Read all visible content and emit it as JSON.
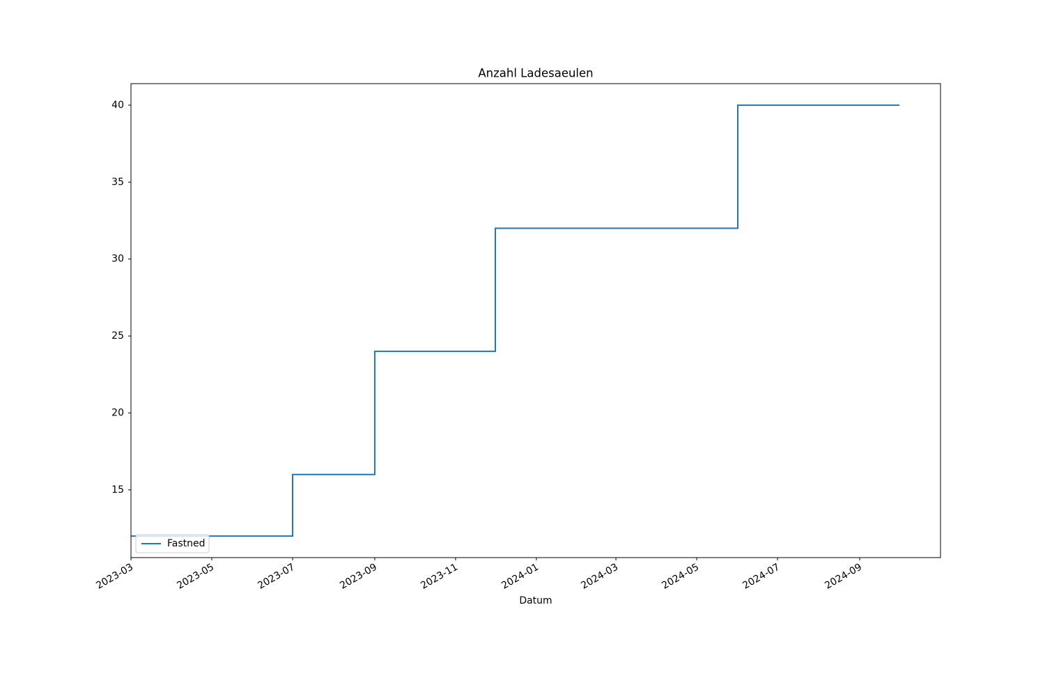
{
  "chart_data": {
    "type": "line",
    "title": "Anzahl Ladesaeulen",
    "xlabel": "Datum",
    "x": [
      "2023-03",
      "2023-07",
      "2023-07",
      "2023-09",
      "2023-09",
      "2023-12",
      "2023-12",
      "2024-06",
      "2024-06",
      "2024-10"
    ],
    "series": [
      {
        "name": "Fastned",
        "color": "#1f77b4",
        "values": [
          12,
          12,
          16,
          16,
          24,
          24,
          32,
          32,
          40,
          40
        ]
      }
    ],
    "xlim": [
      "2023-03",
      "2024-11"
    ],
    "xticks": [
      "2023-03",
      "2023-05",
      "2023-07",
      "2023-09",
      "2023-11",
      "2024-01",
      "2024-03",
      "2024-05",
      "2024-07",
      "2024-09"
    ],
    "ylim": [
      10.6,
      41.4
    ],
    "yticks": [
      15,
      20,
      25,
      30,
      35,
      40
    ],
    "legend": "lower left",
    "grid": false
  }
}
